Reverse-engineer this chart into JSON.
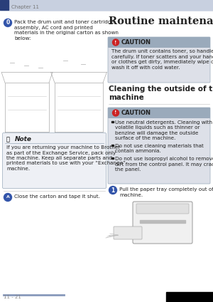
{
  "page_bg": "#ffffff",
  "header_bar_color": "#c8d0e0",
  "header_dark_color": "#2a3f7a",
  "header_text": "Chapter 11",
  "header_text_color": "#777777",
  "footer_text": "11 - 21",
  "footer_line_color": "#8899bb",
  "footer_bg_right": "#000000",
  "step0_icon_color": "#3355aa",
  "step0_text": "Pack the drum unit and toner cartridge\nassembly, AC cord and printed\nmaterials in the original carton as shown\nbelow:",
  "note_box_bg": "#eef0f5",
  "note_border_color": "#9aaabb",
  "note_title": "Note",
  "note_text": "If you are returning your machine to Brother\nas part of the Exchange Service, pack only\nthe machine. Keep all separate parts and\nprinted materials to use with your “Exchange”\nmachine.",
  "stepA_icon_color": "#3355aa",
  "stepA_text": "Close the carton and tape it shut.",
  "routine_title": "Routine maintenance",
  "caution_bg": "#dde0e8",
  "caution_border": "#9aaabb",
  "caution_icon_color": "#cc2222",
  "caution1_title": "CAUTION",
  "caution1_text": "The drum unit contains toner, so handle it\ncarefully. If toner scatters and your hands\nor clothes get dirty, immediately wipe or\nwash it off with cold water.",
  "section_title": "Cleaning the outside of the\nmachine",
  "caution2_title": "CAUTION",
  "caution2_bullets": [
    "Use neutral detergents. Cleaning with\nvolatile liquids such as thinner or\nbenzine will damage the outside\nsurface of the machine.",
    "Do not use cleaning materials that\ncontain ammonia.",
    "Do not use isopropyl alcohol to remove\ndirt from the control panel. It may crack\nthe panel."
  ],
  "step1_icon_color": "#3355aa",
  "step1_text": "Pull the paper tray completely out of the\nmachine.",
  "text_color": "#222222",
  "small_font": 5.2,
  "title_font": 10.5,
  "section_font": 7.5,
  "header_font": 5.0,
  "note_title_font": 6.5,
  "caution_title_font": 6.0
}
